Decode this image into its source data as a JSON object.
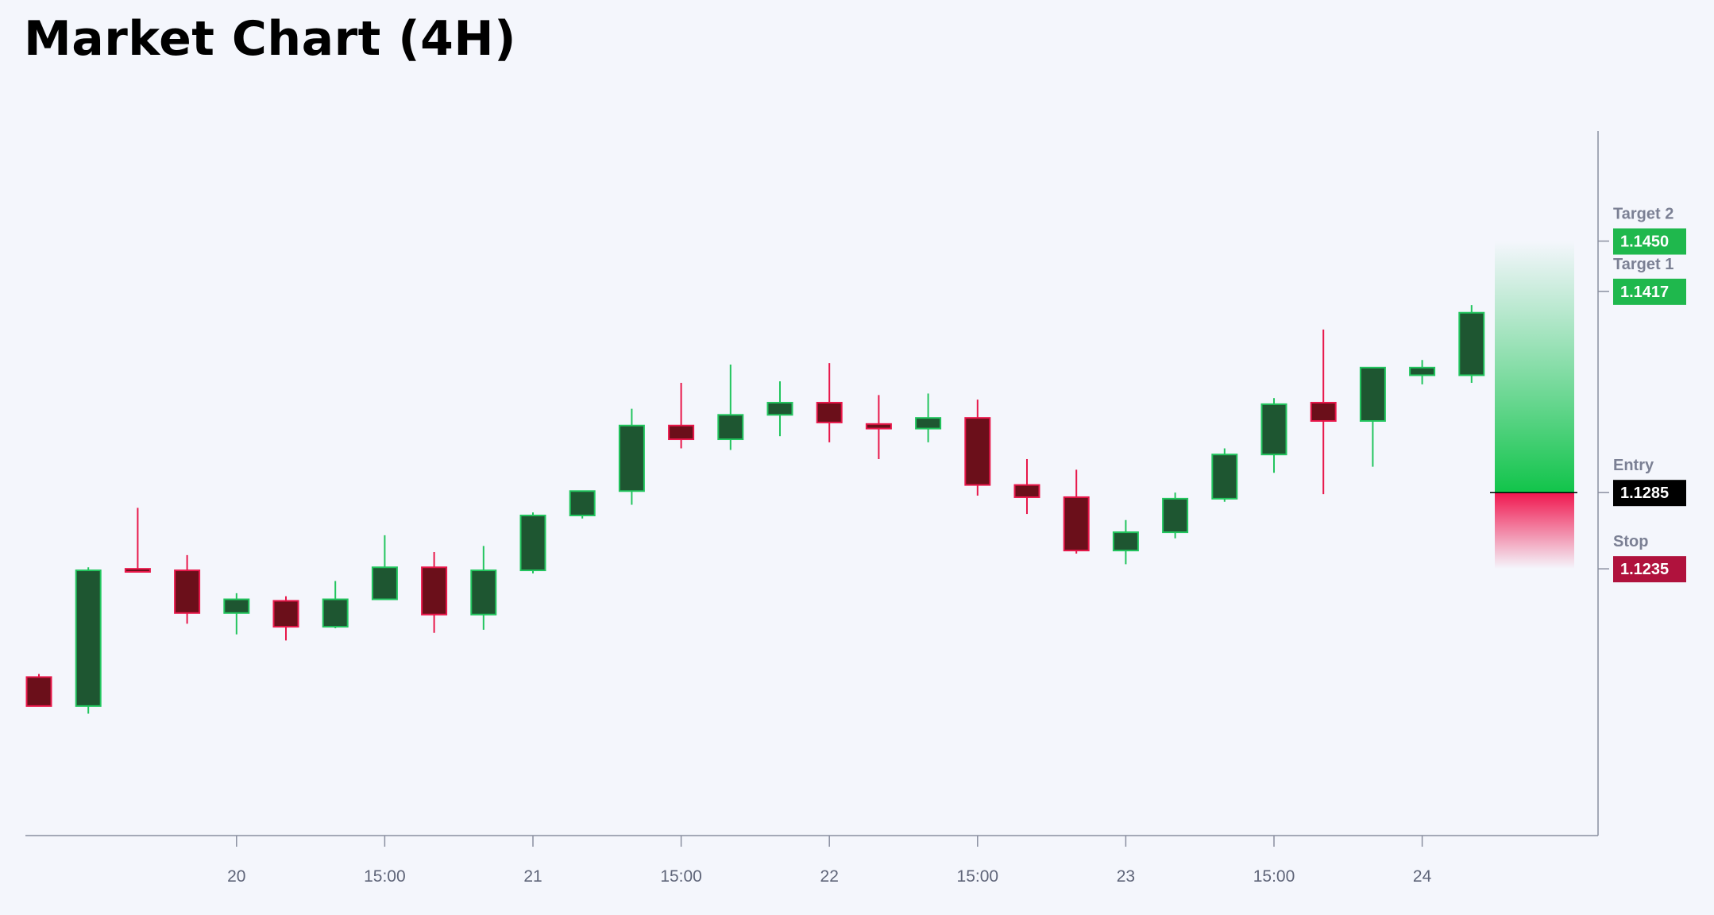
{
  "title": "Market Chart (4H)",
  "colors": {
    "background": "#f4f6fc",
    "up_body": "#1e5631",
    "up_border": "#22c55e",
    "down_body": "#6b0f1a",
    "down_border": "#e8174a",
    "target": "#1fb84d",
    "stop": "#b0123d",
    "entry": "#000000",
    "axis": "#8a8fa0"
  },
  "chart_data": {
    "type": "candlestick",
    "title": "Market Chart (4H)",
    "x_tick_labels": [
      "20",
      "15:00",
      "21",
      "15:00",
      "22",
      "15:00",
      "23",
      "15:00",
      "24"
    ],
    "x_tick_index": [
      4,
      7,
      10,
      13,
      16,
      19,
      22,
      25,
      28
    ],
    "ylim": [
      1.106,
      1.153
    ],
    "grid": false,
    "candles": [
      {
        "o": 1.1164,
        "h": 1.1166,
        "l": 1.1147,
        "c": 1.1145
      },
      {
        "o": 1.1145,
        "h": 1.1236,
        "l": 1.114,
        "c": 1.1234
      },
      {
        "o": 1.1235,
        "h": 1.1275,
        "l": 1.1233,
        "c": 1.1233
      },
      {
        "o": 1.1234,
        "h": 1.1244,
        "l": 1.1199,
        "c": 1.1206
      },
      {
        "o": 1.1206,
        "h": 1.1219,
        "l": 1.1192,
        "c": 1.1215
      },
      {
        "o": 1.1214,
        "h": 1.1217,
        "l": 1.1188,
        "c": 1.1197
      },
      {
        "o": 1.1197,
        "h": 1.1227,
        "l": 1.1196,
        "c": 1.1215
      },
      {
        "o": 1.1215,
        "h": 1.1257,
        "l": 1.1215,
        "c": 1.1236
      },
      {
        "o": 1.1236,
        "h": 1.1246,
        "l": 1.1193,
        "c": 1.1205
      },
      {
        "o": 1.1205,
        "h": 1.125,
        "l": 1.1195,
        "c": 1.1234
      },
      {
        "o": 1.1234,
        "h": 1.1272,
        "l": 1.1232,
        "c": 1.127
      },
      {
        "o": 1.127,
        "h": 1.1285,
        "l": 1.1268,
        "c": 1.1286
      },
      {
        "o": 1.1286,
        "h": 1.134,
        "l": 1.1277,
        "c": 1.1329
      },
      {
        "o": 1.1329,
        "h": 1.1357,
        "l": 1.1314,
        "c": 1.132
      },
      {
        "o": 1.132,
        "h": 1.1369,
        "l": 1.1313,
        "c": 1.1336
      },
      {
        "o": 1.1336,
        "h": 1.1358,
        "l": 1.1322,
        "c": 1.1344
      },
      {
        "o": 1.1344,
        "h": 1.137,
        "l": 1.1318,
        "c": 1.1331
      },
      {
        "o": 1.133,
        "h": 1.1349,
        "l": 1.1307,
        "c": 1.1327
      },
      {
        "o": 1.1327,
        "h": 1.135,
        "l": 1.1318,
        "c": 1.1334
      },
      {
        "o": 1.1334,
        "h": 1.1346,
        "l": 1.1283,
        "c": 1.129
      },
      {
        "o": 1.129,
        "h": 1.1307,
        "l": 1.1271,
        "c": 1.1282
      },
      {
        "o": 1.1282,
        "h": 1.13,
        "l": 1.1245,
        "c": 1.1247
      },
      {
        "o": 1.1247,
        "h": 1.1267,
        "l": 1.1238,
        "c": 1.1259
      },
      {
        "o": 1.1259,
        "h": 1.1285,
        "l": 1.1255,
        "c": 1.1281
      },
      {
        "o": 1.1281,
        "h": 1.1314,
        "l": 1.1279,
        "c": 1.131
      },
      {
        "o": 1.131,
        "h": 1.1347,
        "l": 1.1298,
        "c": 1.1343
      },
      {
        "o": 1.1344,
        "h": 1.1392,
        "l": 1.1284,
        "c": 1.1332
      },
      {
        "o": 1.1332,
        "h": 1.1367,
        "l": 1.1302,
        "c": 1.1367
      },
      {
        "o": 1.1362,
        "h": 1.1372,
        "l": 1.1356,
        "c": 1.1367
      },
      {
        "o": 1.1362,
        "h": 1.1408,
        "l": 1.1357,
        "c": 1.1403
      }
    ],
    "levels": [
      {
        "name": "Target 2",
        "value": 1.145,
        "label": "1.1450",
        "kind": "target"
      },
      {
        "name": "Target 1",
        "value": 1.1417,
        "label": "1.1417",
        "kind": "target"
      },
      {
        "name": "Entry",
        "value": 1.1285,
        "label": "1.1285",
        "kind": "entry"
      },
      {
        "name": "Stop",
        "value": 1.1235,
        "label": "1.1235",
        "kind": "stop"
      }
    ],
    "risk_reward_zone": {
      "top": 1.145,
      "entry": 1.1285,
      "stop": 1.1235
    }
  }
}
